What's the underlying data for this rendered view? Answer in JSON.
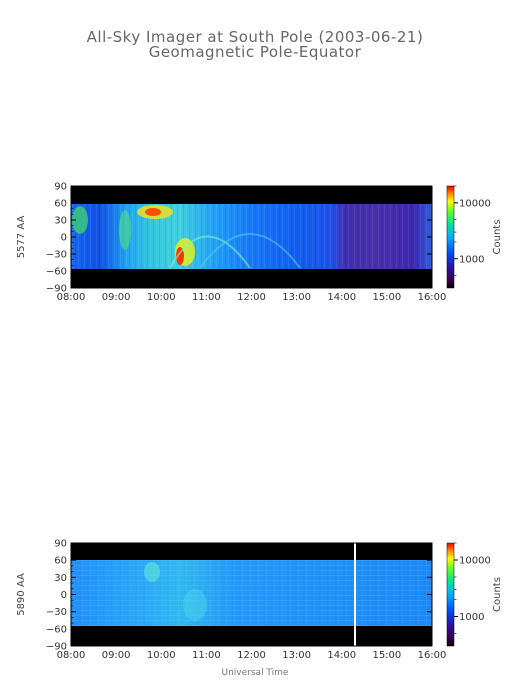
{
  "title": "All-Sky Imager at South Pole (2003-06-21)",
  "subtitle": "Geomagnetic Pole-Equator",
  "chart_data": [
    {
      "type": "heatmap",
      "ylabel": "5577 AA",
      "x_ticks": [
        "08:00",
        "09:00",
        "10:00",
        "11:00",
        "12:00",
        "13:00",
        "14:00",
        "15:00",
        "16:00"
      ],
      "y_ticks": [
        90,
        60,
        30,
        0,
        -30,
        -60,
        -90
      ],
      "xlim": [
        "08:00",
        "16:00"
      ],
      "ylim": [
        -90,
        90
      ],
      "data_coverage_y": [
        -55,
        60
      ],
      "colorbar": {
        "label": "Counts",
        "ticks": [
          "10000",
          "1000"
        ],
        "scale": "log"
      }
    },
    {
      "type": "heatmap",
      "ylabel": "5890 AA",
      "xlabel": "Universal Time",
      "x_ticks": [
        "08:00",
        "09:00",
        "10:00",
        "11:00",
        "12:00",
        "13:00",
        "14:00",
        "15:00",
        "16:00"
      ],
      "y_ticks": [
        90,
        60,
        30,
        0,
        -30,
        -60,
        -90
      ],
      "xlim": [
        "08:00",
        "16:00"
      ],
      "ylim": [
        -90,
        90
      ],
      "data_coverage_y": [
        -55,
        60
      ],
      "gap_time": "14:20",
      "colorbar": {
        "label": "Counts",
        "ticks": [
          "10000",
          "1000"
        ],
        "scale": "log"
      }
    }
  ]
}
